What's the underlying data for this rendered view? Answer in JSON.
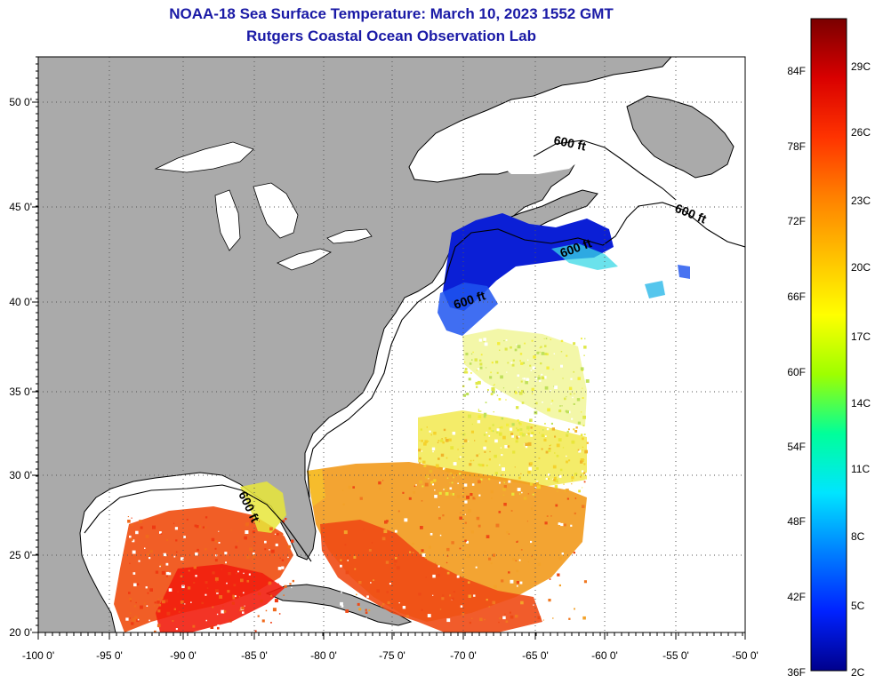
{
  "title": {
    "line1": "NOAA-18 Sea Surface Temperature:  March 10, 2023 1552 GMT",
    "line2": "Rutgers Coastal Ocean Observation Lab"
  },
  "map": {
    "lat_labels": [
      "50 0'",
      "45 0'",
      "40 0'",
      "35 0'",
      "30 0'",
      "25 0'",
      "20 0'"
    ],
    "lon_labels": [
      "-100 0'",
      "-95 0'",
      "-90 0'",
      "-85 0'",
      "-80 0'",
      "-75 0'",
      "-70 0'",
      "-65 0'",
      "-60 0'",
      "-55 0'",
      "-50 0'"
    ],
    "contour_label": "600 ft",
    "land_color": "#aaaaaa",
    "ocean_color": "#ffffff"
  },
  "colorbar": {
    "fahrenheit_labels": [
      "84F",
      "78F",
      "72F",
      "66F",
      "60F",
      "54F",
      "48F",
      "42F",
      "36F"
    ],
    "celsius_labels": [
      "29C",
      "26C",
      "23C",
      "20C",
      "17C",
      "14C",
      "11C",
      "8C",
      "5C",
      "2C"
    ],
    "gradient_colors": [
      "#7a0000",
      "#d90000",
      "#ff3300",
      "#ff8000",
      "#ffc000",
      "#ffff00",
      "#9eff00",
      "#00ff9a",
      "#00e5ff",
      "#0080ff",
      "#0022ff",
      "#00008c"
    ]
  }
}
